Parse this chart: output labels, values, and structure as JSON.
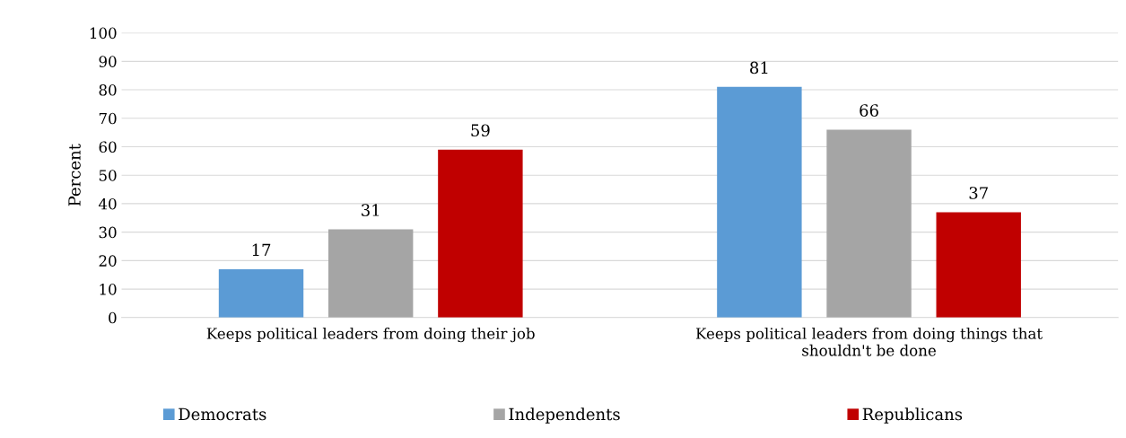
{
  "chart_data": {
    "type": "bar",
    "ylabel": "Percent",
    "categories": [
      "Keeps political leaders from doing their job",
      "Keeps political leaders from doing things that shouldn't be done"
    ],
    "series": [
      {
        "name": "Democrats",
        "color": "#5b9bd5",
        "values": [
          17,
          81
        ]
      },
      {
        "name": "Independents",
        "color": "#a5a5a5",
        "values": [
          31,
          66
        ]
      },
      {
        "name": "Republicans",
        "color": "#c00000",
        "values": [
          59,
          37
        ]
      }
    ],
    "ylim": [
      0,
      100
    ],
    "yticks": [
      0,
      10,
      20,
      30,
      40,
      50,
      60,
      70,
      80,
      90,
      100
    ],
    "grid": "y",
    "legend": "bottom",
    "data_labels": true
  }
}
